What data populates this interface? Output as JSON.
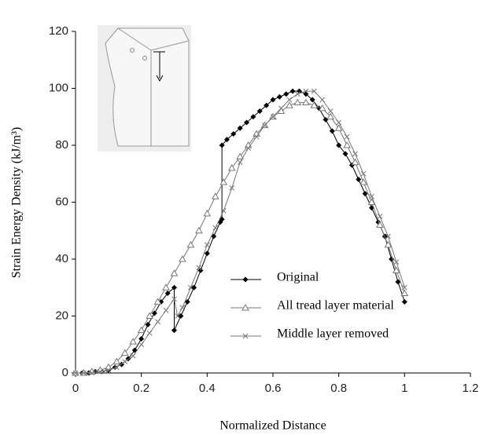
{
  "chart_data": {
    "type": "line",
    "x_label": "Normalized Distance",
    "y_label": "Strain Energy Density (kJ/m³)",
    "xlim": [
      0,
      1.2
    ],
    "xticks": [
      0,
      0.2,
      0.4,
      0.6,
      0.8,
      1,
      1.2
    ],
    "ylim": [
      0,
      120
    ],
    "yticks": [
      0,
      20,
      40,
      60,
      80,
      100,
      120
    ],
    "grid": false,
    "legend": "lower-right",
    "series": [
      {
        "name": "Original",
        "color": "#000000",
        "marker": "diamond",
        "x": [
          0,
          0.02,
          0.04,
          0.06,
          0.08,
          0.1,
          0.12,
          0.14,
          0.16,
          0.18,
          0.2,
          0.22,
          0.24,
          0.26,
          0.28,
          0.3,
          0.3,
          0.32,
          0.34,
          0.36,
          0.38,
          0.4,
          0.42,
          0.44,
          0.445,
          0.445,
          0.46,
          0.48,
          0.5,
          0.52,
          0.54,
          0.56,
          0.58,
          0.6,
          0.62,
          0.64,
          0.66,
          0.68,
          0.7,
          0.72,
          0.74,
          0.76,
          0.78,
          0.8,
          0.82,
          0.84,
          0.86,
          0.88,
          0.9,
          0.92,
          0.94,
          0.96,
          0.98,
          1
        ],
        "values": [
          0,
          0,
          0,
          0.5,
          0.5,
          1,
          2,
          3,
          5,
          8,
          12,
          17,
          21,
          25,
          28,
          30,
          15,
          20,
          25,
          30,
          36,
          42,
          48,
          53,
          54,
          80,
          82,
          84,
          86,
          88,
          90,
          92,
          94,
          96,
          97,
          98,
          99,
          99,
          98,
          96,
          93,
          89,
          85,
          80,
          77,
          73,
          68,
          63,
          58,
          53,
          48,
          40,
          32,
          25
        ]
      },
      {
        "name": "All tread layer material",
        "color": "#777777",
        "marker": "triangle",
        "x": [
          0,
          0.025,
          0.05,
          0.075,
          0.1,
          0.125,
          0.15,
          0.175,
          0.2,
          0.225,
          0.25,
          0.275,
          0.3,
          0.325,
          0.35,
          0.375,
          0.4,
          0.425,
          0.45,
          0.475,
          0.5,
          0.525,
          0.55,
          0.575,
          0.6,
          0.625,
          0.65,
          0.675,
          0.7,
          0.725,
          0.75,
          0.775,
          0.8,
          0.825,
          0.85,
          0.875,
          0.9,
          0.925,
          0.95,
          0.975,
          1
        ],
        "values": [
          0,
          0,
          0.5,
          1,
          2,
          4,
          7,
          11,
          15,
          20,
          25,
          30,
          35,
          40,
          45,
          50,
          56,
          62,
          67,
          72,
          76,
          80,
          84,
          87,
          90,
          92,
          94,
          95,
          95,
          94,
          93,
          90,
          86,
          80,
          74,
          67,
          60,
          52,
          45,
          36,
          28
        ]
      },
      {
        "name": "Middle layer removed",
        "color": "#777777",
        "marker": "cross",
        "x": [
          0,
          0.025,
          0.05,
          0.075,
          0.1,
          0.125,
          0.15,
          0.175,
          0.2,
          0.225,
          0.25,
          0.275,
          0.3,
          0.31,
          0.325,
          0.35,
          0.375,
          0.4,
          0.425,
          0.45,
          0.475,
          0.5,
          0.525,
          0.55,
          0.575,
          0.6,
          0.625,
          0.65,
          0.675,
          0.7,
          0.725,
          0.75,
          0.775,
          0.8,
          0.825,
          0.85,
          0.875,
          0.9,
          0.925,
          0.95,
          0.975,
          1
        ],
        "values": [
          0,
          0,
          0,
          0.5,
          1,
          2,
          4,
          6,
          10,
          14,
          18,
          22,
          26,
          20,
          23,
          30,
          37,
          45,
          51,
          57,
          65,
          74,
          79,
          83,
          87,
          90,
          93,
          96,
          98,
          99,
          99,
          96,
          92,
          88,
          83,
          77,
          70,
          62,
          55,
          48,
          39,
          30
        ]
      }
    ]
  }
}
